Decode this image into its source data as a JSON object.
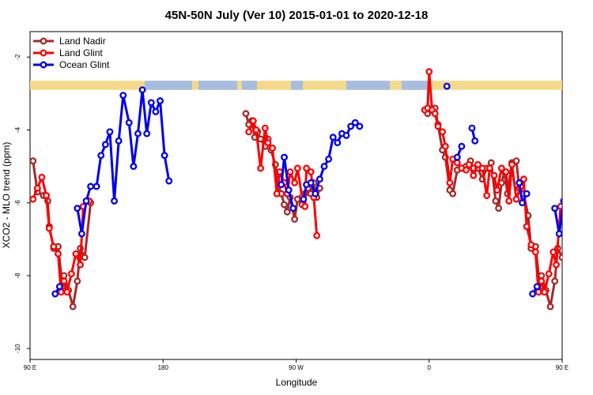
{
  "chart_data": {
    "type": "line",
    "title": "45N-50N July (Ver 10)   2015-01-01 to 2020-12-18",
    "xlabel": "Longitude",
    "ylabel": "XCO2 - MLO trend (ppm)",
    "x_axis_range_deg": [
      90,
      450
    ],
    "y_axis_range": [
      -10.3,
      -1.3
    ],
    "x_ticks": [
      {
        "value": 90,
        "label": "90 E"
      },
      {
        "value": 180,
        "label": "180"
      },
      {
        "value": 270,
        "label": "90 W"
      },
      {
        "value": 360,
        "label": "0"
      },
      {
        "value": 450,
        "label": "90 E"
      },
      {
        "value": 540,
        "label": "180"
      }
    ],
    "y_ticks": [
      {
        "value": -2,
        "label": "-2"
      },
      {
        "value": -4,
        "label": "-4"
      },
      {
        "value": -6,
        "label": "-6"
      },
      {
        "value": -8,
        "label": "-8"
      },
      {
        "value": -10,
        "label": "-10"
      }
    ],
    "legend_position": "top-left",
    "grid": false,
    "land_band": {
      "y_top": -2.65,
      "y_bottom": -2.9,
      "land_color": "#f5d98a",
      "ocean_color": "#a7bde0"
    },
    "series": [
      {
        "name": "Land Nadir",
        "color": "#a52a2a",
        "segments": [
          [
            [
              92,
              -4.85
            ],
            [
              95,
              -5.7
            ],
            [
              99,
              -5.8
            ],
            [
              102,
              -5.95
            ],
            [
              103,
              -6.65
            ],
            [
              106,
              -7.25
            ],
            [
              109,
              -7.2
            ],
            [
              112,
              -8.3
            ],
            [
              113,
              -8.0
            ],
            [
              116,
              -8.4
            ],
            [
              119,
              -8.85
            ],
            [
              122,
              -8.15
            ],
            [
              124,
              -7.25
            ],
            [
              127,
              -7.5
            ],
            [
              131,
              -6.0
            ]
          ],
          [
            [
              236,
              -3.55
            ],
            [
              238,
              -3.85
            ],
            [
              240,
              -3.75
            ],
            [
              242,
              -4.2
            ],
            [
              244,
              -4.05
            ],
            [
              246,
              -4.25
            ],
            [
              249,
              -4.45
            ],
            [
              251,
              -4.25
            ],
            [
              253,
              -4.55
            ],
            [
              256,
              -4.95
            ],
            [
              258,
              -5.55
            ],
            [
              260,
              -5.75
            ],
            [
              262,
              -6.05
            ],
            [
              264,
              -6.25
            ],
            [
              266,
              -5.85
            ],
            [
              269,
              -6.45
            ],
            [
              271,
              -5.9
            ],
            [
              274,
              -6.05
            ],
            [
              276,
              -5.75
            ],
            [
              278,
              -5.6
            ],
            [
              280,
              -5.75
            ],
            [
              282,
              -5.45
            ],
            [
              284,
              -5.85
            ],
            [
              286,
              -5.6
            ]
          ],
          [
            [
              359,
              -3.55
            ],
            [
              361,
              -3.45
            ],
            [
              364,
              -3.4
            ],
            [
              366,
              -3.85
            ],
            [
              369,
              -4.55
            ],
            [
              371,
              -4.75
            ],
            [
              374,
              -5.65
            ],
            [
              376,
              -5.75
            ],
            [
              379,
              -5.1
            ],
            [
              382,
              -5.05
            ],
            [
              385,
              -5.0
            ],
            [
              388,
              -4.85
            ],
            [
              390,
              -5.05
            ],
            [
              393,
              -5.05
            ],
            [
              396,
              -5.35
            ],
            [
              399,
              -5.05
            ],
            [
              402,
              -4.9
            ],
            [
              405,
              -5.95
            ],
            [
              407,
              -6.15
            ],
            [
              409,
              -5.45
            ],
            [
              411,
              -5.15
            ],
            [
              413,
              -5.75
            ],
            [
              416,
              -4.9
            ],
            [
              419,
              -4.85
            ],
            [
              421,
              -5.6
            ],
            [
              424,
              -5.75
            ],
            [
              427,
              -6.35
            ],
            [
              429,
              -7.25
            ],
            [
              432,
              -7.2
            ],
            [
              435,
              -8.3
            ],
            [
              436,
              -8.0
            ],
            [
              439,
              -8.4
            ],
            [
              442,
              -8.85
            ],
            [
              445,
              -8.15
            ],
            [
              447,
              -7.25
            ],
            [
              450,
              -7.5
            ],
            [
              454,
              -6.0
            ]
          ]
        ]
      },
      {
        "name": "Land Glint",
        "color": "#ff0000",
        "segments": [
          [
            [
              92,
              -5.9
            ],
            [
              95,
              -5.6
            ],
            [
              98,
              -5.3
            ],
            [
              101,
              -5.8
            ],
            [
              103,
              -6.7
            ],
            [
              106,
              -7.2
            ],
            [
              109,
              -7.4
            ],
            [
              111,
              -8.45
            ],
            [
              113,
              -8.15
            ],
            [
              115,
              -8.45
            ],
            [
              118,
              -7.95
            ],
            [
              121,
              -7.4
            ],
            [
              124,
              -7.7
            ],
            [
              126,
              -6.1
            ],
            [
              130,
              -5.95
            ]
          ],
          [
            [
              238,
              -4.05
            ],
            [
              241,
              -3.75
            ],
            [
              243,
              -4.0
            ],
            [
              246,
              -5.05
            ],
            [
              249,
              -3.95
            ],
            [
              251,
              -4.35
            ],
            [
              254,
              -4.5
            ],
            [
              257,
              -5.75
            ],
            [
              259,
              -5.15
            ],
            [
              262,
              -5.45
            ],
            [
              264,
              -5.75
            ],
            [
              266,
              -5.15
            ],
            [
              269,
              -5.45
            ],
            [
              271,
              -5.05
            ],
            [
              274,
              -5.85
            ],
            [
              276,
              -6.1
            ],
            [
              277,
              -5.05
            ],
            [
              280,
              -5.15
            ],
            [
              282,
              -5.85
            ],
            [
              284,
              -6.9
            ]
          ],
          [
            [
              357,
              -3.45
            ],
            [
              359,
              -3.4
            ],
            [
              360,
              -2.4
            ],
            [
              362,
              -3.45
            ],
            [
              364,
              -3.55
            ],
            [
              366,
              -3.9
            ],
            [
              369,
              -4.05
            ],
            [
              371,
              -4.45
            ],
            [
              374,
              -5.45
            ],
            [
              376,
              -4.8
            ],
            [
              379,
              -4.9
            ],
            [
              382,
              -5.05
            ],
            [
              385,
              -5.1
            ],
            [
              387,
              -4.95
            ],
            [
              390,
              -5.25
            ],
            [
              393,
              -4.95
            ],
            [
              396,
              -5.05
            ],
            [
              399,
              -5.8
            ],
            [
              401,
              -5.05
            ],
            [
              404,
              -5.25
            ],
            [
              406,
              -5.65
            ],
            [
              409,
              -5.05
            ],
            [
              412,
              -5.15
            ],
            [
              414,
              -5.95
            ],
            [
              416,
              -4.95
            ],
            [
              419,
              -5.9
            ],
            [
              422,
              -5.55
            ],
            [
              424,
              -5.35
            ],
            [
              426,
              -6.65
            ],
            [
              429,
              -7.15
            ],
            [
              432,
              -7.35
            ],
            [
              434,
              -8.45
            ],
            [
              436,
              -8.15
            ],
            [
              438,
              -8.45
            ],
            [
              441,
              -7.95
            ],
            [
              444,
              -7.35
            ],
            [
              446,
              -7.7
            ],
            [
              449,
              -6.1
            ],
            [
              453,
              -5.95
            ]
          ]
        ]
      },
      {
        "name": "Ocean Glint",
        "color": "#0000ee",
        "segments": [
          [
            [
              107,
              -8.5
            ],
            [
              110,
              -8.3
            ]
          ],
          [
            [
              122,
              -6.15
            ],
            [
              125,
              -6.85
            ],
            [
              128,
              -5.95
            ],
            [
              131,
              -5.55
            ],
            [
              135,
              -5.55
            ],
            [
              138,
              -4.7
            ],
            [
              141,
              -4.4
            ],
            [
              144,
              -4.05
            ],
            [
              147,
              -5.95
            ],
            [
              150,
              -4.3
            ],
            [
              153,
              -3.05
            ],
            [
              157,
              -3.8
            ],
            [
              160,
              -5.0
            ],
            [
              163,
              -4.1
            ],
            [
              166,
              -2.9
            ],
            [
              169,
              -4.1
            ],
            [
              172,
              -3.25
            ],
            [
              175,
              -3.5
            ],
            [
              178,
              -3.2
            ],
            [
              181,
              -4.7
            ],
            [
              184,
              -5.4
            ]
          ],
          [
            [
              260,
              -5.5
            ],
            [
              262,
              -4.75
            ],
            [
              265,
              -5.65
            ],
            [
              268,
              -6.15
            ]
          ],
          [
            [
              275,
              -5.9
            ],
            [
              277,
              -5.5
            ],
            [
              280,
              -5.45
            ],
            [
              283,
              -5.75
            ],
            [
              286,
              -5.35
            ],
            [
              289,
              -5.0
            ],
            [
              292,
              -4.8
            ],
            [
              295,
              -4.2
            ],
            [
              298,
              -4.35
            ],
            [
              301,
              -4.1
            ],
            [
              304,
              -4.15
            ],
            [
              307,
              -3.9
            ],
            [
              310,
              -3.8
            ],
            [
              313,
              -3.9
            ]
          ],
          [
            [
              372,
              -2.8
            ]
          ],
          [
            [
              379,
              -4.75
            ],
            [
              382,
              -4.45
            ]
          ],
          [
            [
              389,
              -3.95
            ],
            [
              391,
              -4.3
            ]
          ],
          [
            [
              421,
              -5.45
            ],
            [
              423,
              -6.0
            ],
            [
              426,
              -5.75
            ]
          ],
          [
            [
              430,
              -8.5
            ],
            [
              433,
              -8.3
            ]
          ],
          [
            [
              445,
              -6.15
            ],
            [
              448,
              -6.85
            ],
            [
              451,
              -5.95
            ],
            [
              454,
              -5.55
            ],
            [
              458,
              -5.55
            ],
            [
              461,
              -4.7
            ],
            [
              464,
              -4.4
            ],
            [
              467,
              -4.05
            ],
            [
              470,
              -5.95
            ]
          ]
        ]
      }
    ]
  }
}
